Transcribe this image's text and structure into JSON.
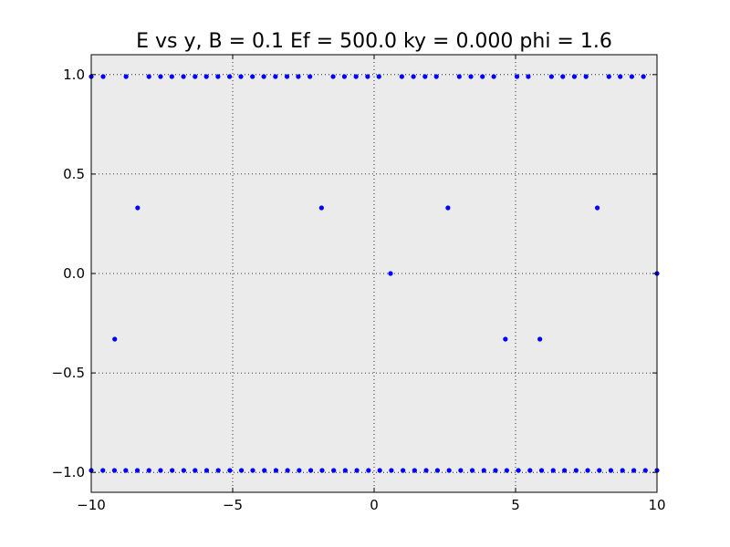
{
  "chart_data": {
    "type": "scatter",
    "title": "E vs y, B = 0.1 Ef = 500.0 ky = 0.000 phi = 1.6",
    "xlabel": "",
    "ylabel": "",
    "xlim": [
      -10,
      10
    ],
    "ylim": [
      -1.1,
      1.1
    ],
    "grid": true,
    "background_color": "#ebebeb",
    "marker_color": "#0000ff",
    "x_ticks": [
      {
        "value": -10,
        "label": "−10"
      },
      {
        "value": -5,
        "label": "−5"
      },
      {
        "value": 0,
        "label": "0"
      },
      {
        "value": 5,
        "label": "5"
      },
      {
        "value": 10,
        "label": "10"
      }
    ],
    "y_ticks": [
      {
        "value": 1.0,
        "label": "1.0"
      },
      {
        "value": 0.5,
        "label": "0.5"
      },
      {
        "value": 0.0,
        "label": "0.0"
      },
      {
        "value": -0.5,
        "label": "−0.5"
      },
      {
        "value": -1.0,
        "label": "−1.0"
      }
    ],
    "series": [
      {
        "points": [
          [
            -10.0,
            0.99
          ],
          [
            -9.58,
            0.99
          ],
          [
            -8.77,
            0.99
          ],
          [
            -7.96,
            0.99
          ],
          [
            -7.55,
            0.99
          ],
          [
            -7.15,
            0.99
          ],
          [
            -6.74,
            0.99
          ],
          [
            -6.33,
            0.99
          ],
          [
            -5.93,
            0.99
          ],
          [
            -5.52,
            0.99
          ],
          [
            -5.11,
            0.99
          ],
          [
            -4.71,
            0.99
          ],
          [
            -4.3,
            0.99
          ],
          [
            -3.9,
            0.99
          ],
          [
            -3.49,
            0.99
          ],
          [
            -3.08,
            0.99
          ],
          [
            -2.68,
            0.99
          ],
          [
            -2.27,
            0.99
          ],
          [
            -1.45,
            0.99
          ],
          [
            -1.05,
            0.99
          ],
          [
            -0.64,
            0.99
          ],
          [
            -0.23,
            0.99
          ],
          [
            0.17,
            0.99
          ],
          [
            0.98,
            0.99
          ],
          [
            1.39,
            0.99
          ],
          [
            1.8,
            0.99
          ],
          [
            2.2,
            0.99
          ],
          [
            3.01,
            0.99
          ],
          [
            3.42,
            0.99
          ],
          [
            3.83,
            0.99
          ],
          [
            4.23,
            0.99
          ],
          [
            5.05,
            0.99
          ],
          [
            5.45,
            0.99
          ],
          [
            6.27,
            0.99
          ],
          [
            6.67,
            0.99
          ],
          [
            7.08,
            0.99
          ],
          [
            7.49,
            0.99
          ],
          [
            8.3,
            0.99
          ],
          [
            8.7,
            0.99
          ],
          [
            9.11,
            0.99
          ],
          [
            9.52,
            0.99
          ],
          [
            -8.36,
            0.33
          ],
          [
            -1.86,
            0.33
          ],
          [
            2.61,
            0.33
          ],
          [
            7.89,
            0.33
          ],
          [
            0.58,
            0.0
          ],
          [
            10.0,
            0.0
          ],
          [
            -9.17,
            -0.33
          ],
          [
            4.64,
            -0.33
          ],
          [
            5.86,
            -0.33
          ],
          [
            -10.0,
            -0.99
          ],
          [
            -9.59,
            -0.99
          ],
          [
            -9.18,
            -0.99
          ],
          [
            -8.78,
            -0.99
          ],
          [
            -8.37,
            -0.99
          ],
          [
            -7.96,
            -0.99
          ],
          [
            -7.55,
            -0.99
          ],
          [
            -7.14,
            -0.99
          ],
          [
            -6.73,
            -0.99
          ],
          [
            -6.33,
            -0.99
          ],
          [
            -5.92,
            -0.99
          ],
          [
            -5.51,
            -0.99
          ],
          [
            -5.1,
            -0.99
          ],
          [
            -4.69,
            -0.99
          ],
          [
            -4.29,
            -0.99
          ],
          [
            -3.88,
            -0.99
          ],
          [
            -3.47,
            -0.99
          ],
          [
            -3.06,
            -0.99
          ],
          [
            -2.65,
            -0.99
          ],
          [
            -2.24,
            -0.99
          ],
          [
            -1.84,
            -0.99
          ],
          [
            -1.43,
            -0.99
          ],
          [
            -1.02,
            -0.99
          ],
          [
            -0.61,
            -0.99
          ],
          [
            -0.2,
            -0.99
          ],
          [
            0.2,
            -0.99
          ],
          [
            0.61,
            -0.99
          ],
          [
            1.02,
            -0.99
          ],
          [
            1.43,
            -0.99
          ],
          [
            1.84,
            -0.99
          ],
          [
            2.24,
            -0.99
          ],
          [
            2.65,
            -0.99
          ],
          [
            3.06,
            -0.99
          ],
          [
            3.47,
            -0.99
          ],
          [
            3.88,
            -0.99
          ],
          [
            4.29,
            -0.99
          ],
          [
            4.69,
            -0.99
          ],
          [
            5.1,
            -0.99
          ],
          [
            5.51,
            -0.99
          ],
          [
            5.92,
            -0.99
          ],
          [
            6.33,
            -0.99
          ],
          [
            6.73,
            -0.99
          ],
          [
            7.14,
            -0.99
          ],
          [
            7.55,
            -0.99
          ],
          [
            7.96,
            -0.99
          ],
          [
            8.37,
            -0.99
          ],
          [
            8.78,
            -0.99
          ],
          [
            9.18,
            -0.99
          ],
          [
            9.59,
            -0.99
          ],
          [
            10.0,
            -0.99
          ]
        ]
      }
    ]
  }
}
